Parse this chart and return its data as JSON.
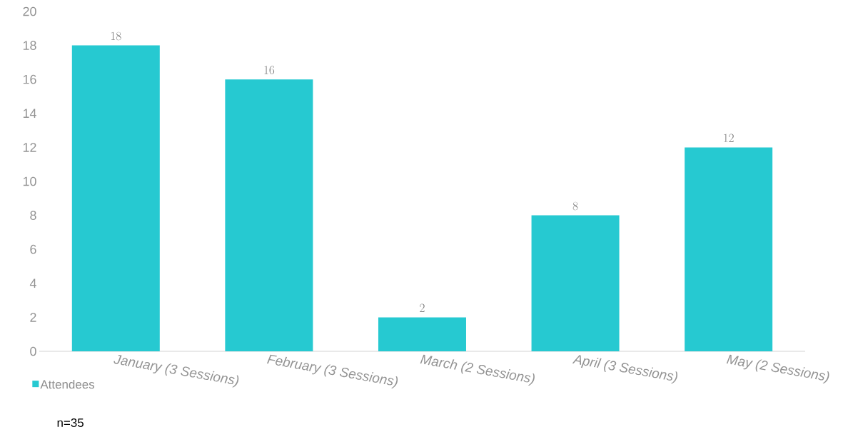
{
  "chart_data": {
    "type": "bar",
    "categories": [
      "January (3 Sessions)",
      "February (3 Sessions)",
      "March (2 Sessions)",
      "April (3 Sessions)",
      "May (2 Sessions)"
    ],
    "series": [
      {
        "name": "Attendees",
        "color": "#26c9d1",
        "values": [
          18,
          16,
          2,
          8,
          12
        ]
      }
    ],
    "ylim": [
      0,
      20
    ],
    "yticks": [
      0,
      2,
      4,
      6,
      8,
      10,
      12,
      14,
      16,
      18,
      20
    ],
    "data_labels": true,
    "legend": "bottom left",
    "grid": false,
    "annotations": [
      "n=35"
    ]
  }
}
